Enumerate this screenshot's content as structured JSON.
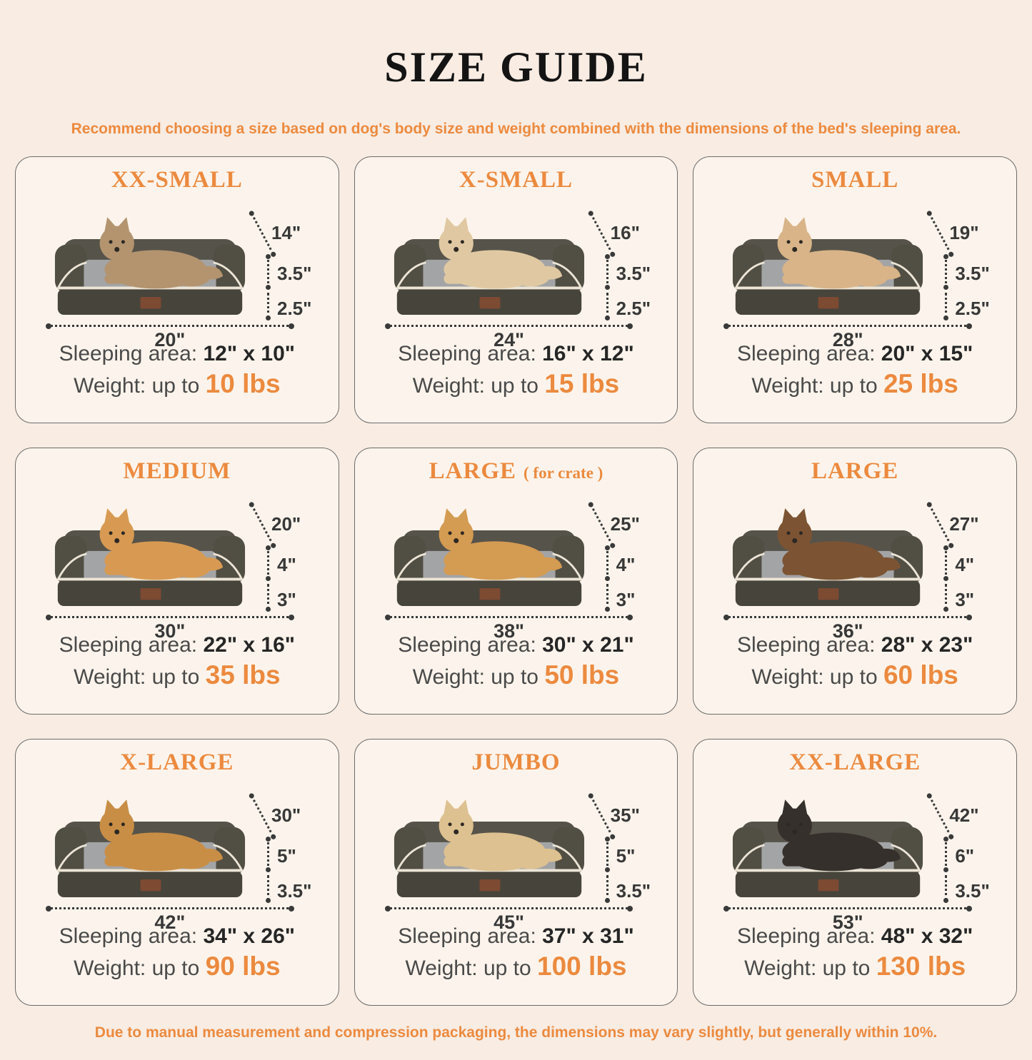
{
  "page": {
    "title": "SIZE GUIDE",
    "subtitle": "Recommend choosing a size based on dog's body size and weight combined with the dimensions of the bed's sleeping area.",
    "footer": "Due to manual measurement and compression packaging, the dimensions may vary slightly, but generally within 10%.",
    "colors": {
      "accent": "#ec8a3f",
      "background": "#f8ece3",
      "card_background": "#fcf4ec",
      "bed_bolster": "#56534a",
      "bed_arm": "#514e44",
      "bed_base": "#47443b",
      "bed_cushion": "#a3a4a6",
      "bed_piping": "#ece5d6",
      "bed_patch": "#7d4a32",
      "dimension_line": "#3a3a3a"
    }
  },
  "labels": {
    "sleeping_area": "Sleeping area:",
    "weight_prefix": "Weight: up to"
  },
  "cards": [
    {
      "title": "XX-SMALL",
      "title_suffix": "",
      "animal": "ragdoll-cat",
      "animal_color": "#b3946f",
      "dims": {
        "depth": "14\"",
        "bolster_height": "3.5\"",
        "base_height": "2.5\"",
        "length": "20\""
      },
      "sleeping_value": "12\" x 10\"",
      "weight_value": "10 lbs"
    },
    {
      "title": "X-SMALL",
      "title_suffix": "",
      "animal": "maltese-puppy",
      "animal_color": "#e0c9a2",
      "dims": {
        "depth": "16\"",
        "bolster_height": "3.5\"",
        "base_height": "2.5\"",
        "length": "24\""
      },
      "sleeping_value": "16\" x 12\"",
      "weight_value": "15 lbs"
    },
    {
      "title": "SMALL",
      "title_suffix": "",
      "animal": "french-bulldog",
      "animal_color": "#d8b488",
      "dims": {
        "depth": "19\"",
        "bolster_height": "3.5\"",
        "base_height": "2.5\"",
        "length": "28\""
      },
      "sleeping_value": "20\" x 15\"",
      "weight_value": "25 lbs"
    },
    {
      "title": "MEDIUM",
      "title_suffix": "",
      "animal": "corgi",
      "animal_color": "#d89a52",
      "dims": {
        "depth": "20\"",
        "bolster_height": "4\"",
        "base_height": "3\"",
        "length": "30\""
      },
      "sleeping_value": "22\" x 16\"",
      "weight_value": "35 lbs"
    },
    {
      "title": "LARGE",
      "title_suffix": "( for crate )",
      "animal": "shiba-inu",
      "animal_color": "#d49b52",
      "dims": {
        "depth": "25\"",
        "bolster_height": "4\"",
        "base_height": "3\"",
        "length": "38\""
      },
      "sleeping_value": "30\" x 21\"",
      "weight_value": "50 lbs"
    },
    {
      "title": "LARGE",
      "title_suffix": "",
      "animal": "border-collie",
      "animal_color": "#7c5433",
      "dims": {
        "depth": "27\"",
        "bolster_height": "4\"",
        "base_height": "3\"",
        "length": "36\""
      },
      "sleeping_value": "28\" x 23\"",
      "weight_value": "60 lbs"
    },
    {
      "title": "X-LARGE",
      "title_suffix": "",
      "animal": "golden-retriever",
      "animal_color": "#c98e45",
      "dims": {
        "depth": "30\"",
        "bolster_height": "5\"",
        "base_height": "3.5\"",
        "length": "42\""
      },
      "sleeping_value": "34\" x 26\"",
      "weight_value": "90 lbs"
    },
    {
      "title": "JUMBO",
      "title_suffix": "",
      "animal": "yellow-labrador",
      "animal_color": "#ddc190",
      "dims": {
        "depth": "35\"",
        "bolster_height": "5\"",
        "base_height": "3.5\"",
        "length": "45\""
      },
      "sleeping_value": "37\" x 31\"",
      "weight_value": "100 lbs"
    },
    {
      "title": "XX-LARGE",
      "title_suffix": "",
      "animal": "rottweiler-and-chihuahua",
      "animal_color": "#35302b",
      "dims": {
        "depth": "42\"",
        "bolster_height": "6\"",
        "base_height": "3.5\"",
        "length": "53\""
      },
      "sleeping_value": "48\" x 32\"",
      "weight_value": "130 lbs"
    }
  ]
}
